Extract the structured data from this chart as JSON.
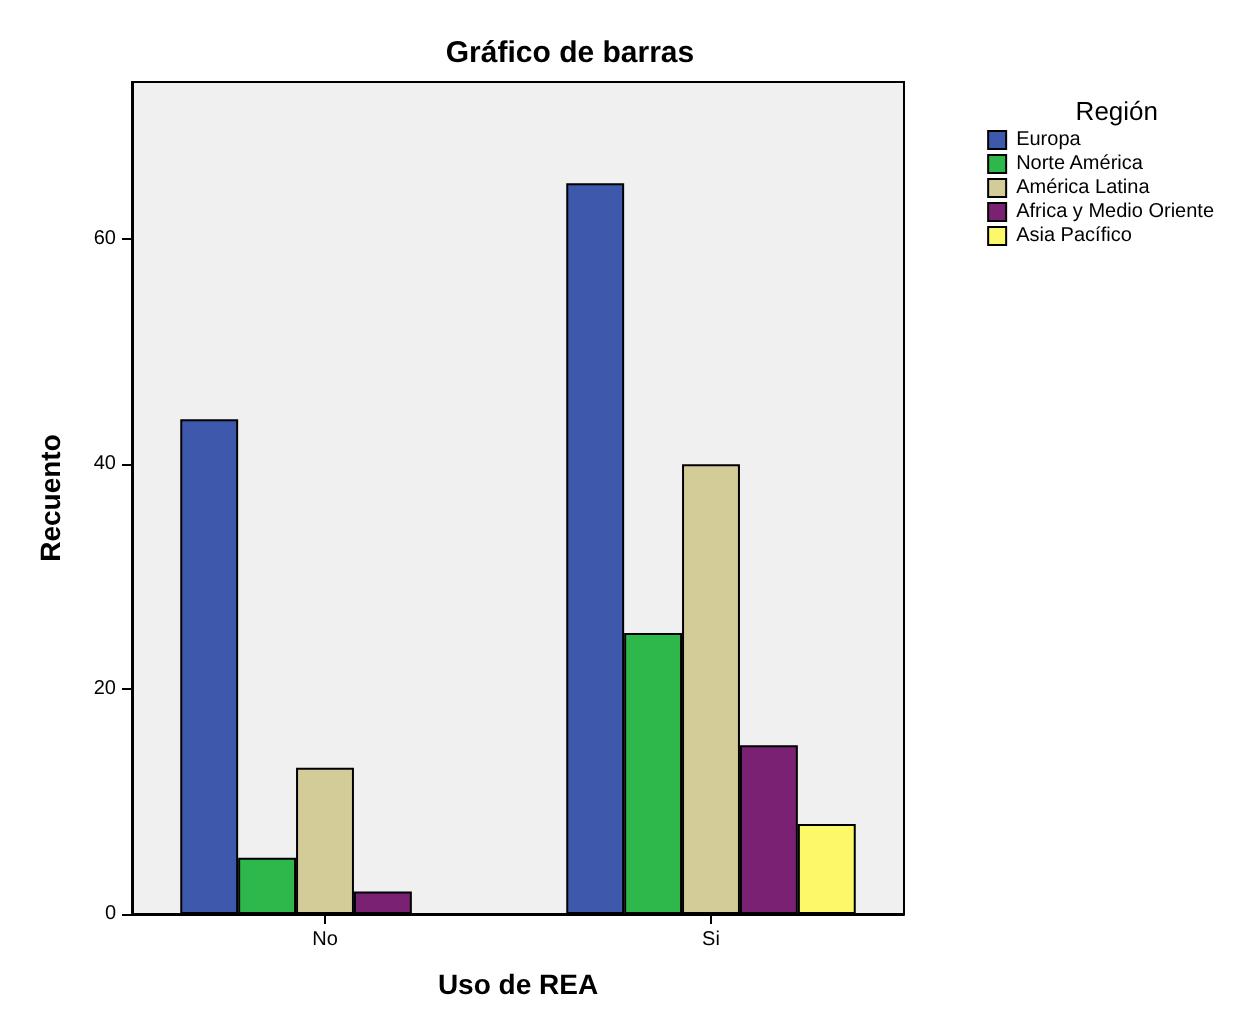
{
  "chart_data": {
    "type": "bar",
    "title": "Gráfico de barras",
    "xlabel": "Uso de REA",
    "ylabel": "Recuento",
    "legend_title": "Región",
    "categories": [
      "No",
      "Si"
    ],
    "series": [
      {
        "name": "Europa",
        "color": "#3e58ac",
        "values": [
          44,
          65
        ]
      },
      {
        "name": "Norte América",
        "color": "#2eb84b",
        "values": [
          5,
          25
        ]
      },
      {
        "name": "América Latina",
        "color": "#d4cc98",
        "values": [
          13,
          40
        ]
      },
      {
        "name": "Africa y Medio Oriente",
        "color": "#7b2174",
        "values": [
          2,
          15
        ]
      },
      {
        "name": "Asia Pacífico",
        "color": "#fbf869",
        "values": [
          null,
          8
        ]
      }
    ],
    "ylim": [
      0,
      74
    ],
    "yticks": [
      0,
      20,
      40,
      60
    ],
    "grid": false,
    "legend": "top right"
  }
}
